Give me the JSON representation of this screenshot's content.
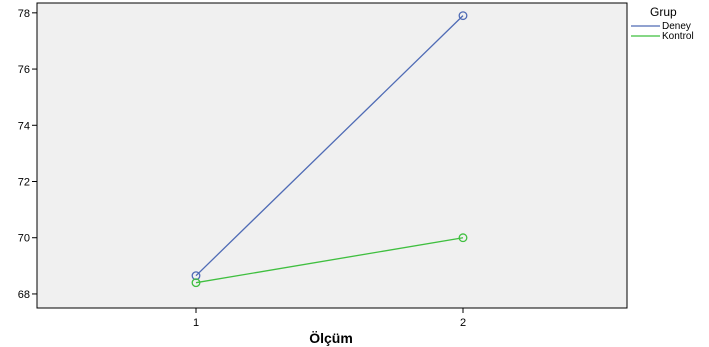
{
  "chart_data": {
    "type": "line",
    "x": [
      "1",
      "2"
    ],
    "xlabel": "Ölçüm",
    "ylabel": "",
    "ylim": [
      67.5,
      78.35
    ],
    "yticks": [
      68,
      70,
      72,
      74,
      76,
      78
    ],
    "grid": false,
    "legend": {
      "title": "Grup",
      "position": "top-right"
    },
    "series": [
      {
        "name": "Deney",
        "values": [
          68.65,
          77.9
        ],
        "color": "#4f6bb5"
      },
      {
        "name": "Kontrol",
        "values": [
          68.4,
          70.0
        ],
        "color": "#3fbf3f"
      }
    ],
    "plot_background": "#f0f0f0"
  }
}
